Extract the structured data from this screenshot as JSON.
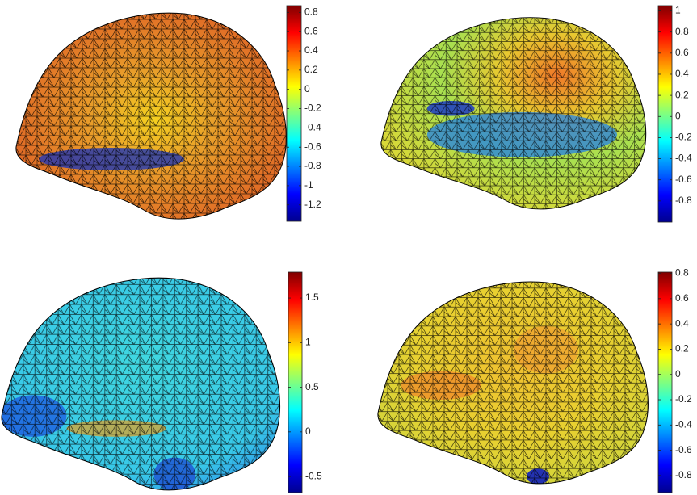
{
  "chart_data": [
    {
      "type": "surface",
      "colormap": "jet",
      "clim": [
        -1.37,
        0.87
      ],
      "cticks": [
        -1.2,
        -1,
        -0.8,
        -0.6,
        -0.4,
        -0.2,
        0,
        0.2,
        0.4,
        0.6,
        0.8
      ]
    },
    {
      "type": "surface",
      "colormap": "jet",
      "clim": [
        -1.0,
        1.05
      ],
      "cticks": [
        -0.8,
        -0.6,
        -0.4,
        -0.2,
        0,
        0.2,
        0.4,
        0.6,
        0.8,
        1
      ]
    },
    {
      "type": "surface",
      "colormap": "jet",
      "clim": [
        -0.68,
        1.79
      ],
      "cticks": [
        -0.5,
        0,
        0.5,
        1,
        1.5
      ]
    },
    {
      "type": "surface",
      "colormap": "jet",
      "clim": [
        -0.935,
        0.81
      ],
      "cticks": [
        -0.8,
        -0.6,
        -0.4,
        -0.2,
        0,
        0.2,
        0.4,
        0.6,
        0.8
      ]
    }
  ]
}
